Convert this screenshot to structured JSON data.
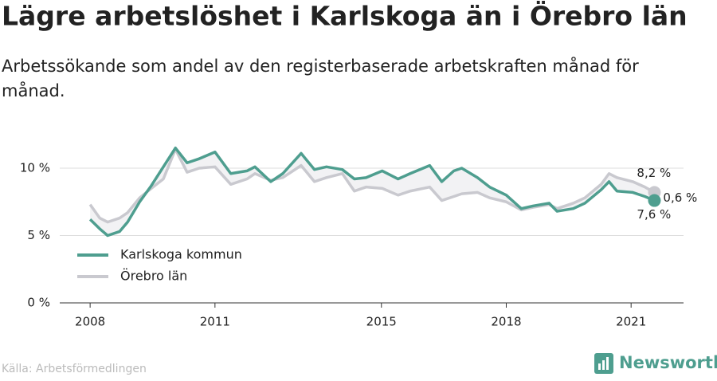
{
  "chart_data": {
    "type": "line",
    "title": "Lägre arbetslöshet i Karlskoga än i Örebro län",
    "subtitle": "Arbetssökande som andel av den registerbaserade arbetskraften månad för månad.",
    "source": "Källa: Arbetsförmedlingen",
    "brand": "Newsworthy",
    "x": [
      2008.0,
      2008.23,
      2008.42,
      2008.71,
      2008.9,
      2009.19,
      2009.47,
      2009.76,
      2010.05,
      2010.33,
      2010.62,
      2011.0,
      2011.38,
      2011.77,
      2011.96,
      2012.34,
      2012.63,
      2013.07,
      2013.39,
      2013.68,
      2014.06,
      2014.35,
      2014.63,
      2015.02,
      2015.4,
      2015.69,
      2016.16,
      2016.45,
      2016.74,
      2016.93,
      2017.31,
      2017.6,
      2018.0,
      2018.36,
      2018.65,
      2019.03,
      2019.22,
      2019.61,
      2019.89,
      2020.28,
      2020.47,
      2020.66,
      2021.04,
      2021.33,
      2021.56
    ],
    "series": [
      {
        "name": "Karlskoga kommun",
        "color": "#4e9e8f",
        "values": [
          6.2,
          5.5,
          5.0,
          5.3,
          6.0,
          7.5,
          8.7,
          10.1,
          11.5,
          10.4,
          10.7,
          11.2,
          9.6,
          9.8,
          10.1,
          9.0,
          9.6,
          11.1,
          9.9,
          10.1,
          9.9,
          9.2,
          9.3,
          9.8,
          9.2,
          9.6,
          10.2,
          9.0,
          9.8,
          10.0,
          9.3,
          8.6,
          8.0,
          7.0,
          7.2,
          7.4,
          6.8,
          7.0,
          7.4,
          8.4,
          9.0,
          8.3,
          8.2,
          7.9,
          7.6
        ]
      },
      {
        "name": "Örebro län",
        "color": "#c9c9cf",
        "values": [
          7.3,
          6.3,
          6.0,
          6.3,
          6.7,
          7.8,
          8.5,
          9.2,
          11.4,
          9.7,
          10.0,
          10.1,
          8.8,
          9.2,
          9.6,
          9.1,
          9.3,
          10.2,
          9.0,
          9.3,
          9.6,
          8.3,
          8.6,
          8.5,
          8.0,
          8.3,
          8.6,
          7.6,
          7.9,
          8.1,
          8.2,
          7.8,
          7.5,
          6.9,
          7.1,
          7.3,
          7.0,
          7.4,
          7.8,
          8.8,
          9.6,
          9.3,
          9.0,
          8.6,
          8.2
        ]
      }
    ],
    "annotations": [
      "8,2 %",
      "0,6 %",
      "7,6 %"
    ],
    "xlim": [
      2007.27,
      2022.26
    ],
    "xticks": [
      2008,
      2011,
      2015,
      2018,
      2021
    ],
    "ylim": [
      0,
      12
    ],
    "yticks": [
      {
        "value": 0,
        "label": "0 %"
      },
      {
        "value": 5,
        "label": "5 %"
      },
      {
        "value": 10,
        "label": "10 %"
      }
    ],
    "grid": true,
    "legend": "bottom-left"
  }
}
